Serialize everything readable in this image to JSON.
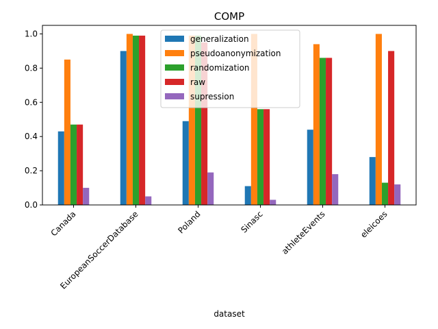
{
  "chart_data": {
    "type": "bar",
    "title": "COMP",
    "xlabel": "dataset",
    "ylabel": "",
    "ylim": [
      0,
      1.05
    ],
    "yticks": [
      0.0,
      0.2,
      0.4,
      0.6,
      0.8,
      1.0
    ],
    "ytick_labels": [
      "0.0",
      "0.2",
      "0.4",
      "0.6",
      "0.8",
      "1.0"
    ],
    "categories": [
      "Canada",
      "EuropeanSoccerDatabase",
      "Poland",
      "Sinasc",
      "athleteEvents",
      "eleicoes"
    ],
    "legend_position": "top-center",
    "grid": false,
    "series": [
      {
        "name": "generalization",
        "color": "#1f77b4",
        "values": [
          0.43,
          0.9,
          0.49,
          0.11,
          0.44,
          0.28
        ]
      },
      {
        "name": "pseudoanonymization",
        "color": "#ff7f0e",
        "values": [
          0.85,
          1.0,
          0.99,
          1.0,
          0.94,
          1.0
        ]
      },
      {
        "name": "randomization",
        "color": "#2ca02c",
        "values": [
          0.47,
          0.99,
          0.99,
          0.56,
          0.86,
          0.13
        ]
      },
      {
        "name": "raw",
        "color": "#d62728",
        "values": [
          0.47,
          0.99,
          0.95,
          0.56,
          0.86,
          0.9
        ]
      },
      {
        "name": "supression",
        "color": "#9467bd",
        "values": [
          0.1,
          0.05,
          0.19,
          0.03,
          0.18,
          0.12
        ]
      }
    ]
  }
}
